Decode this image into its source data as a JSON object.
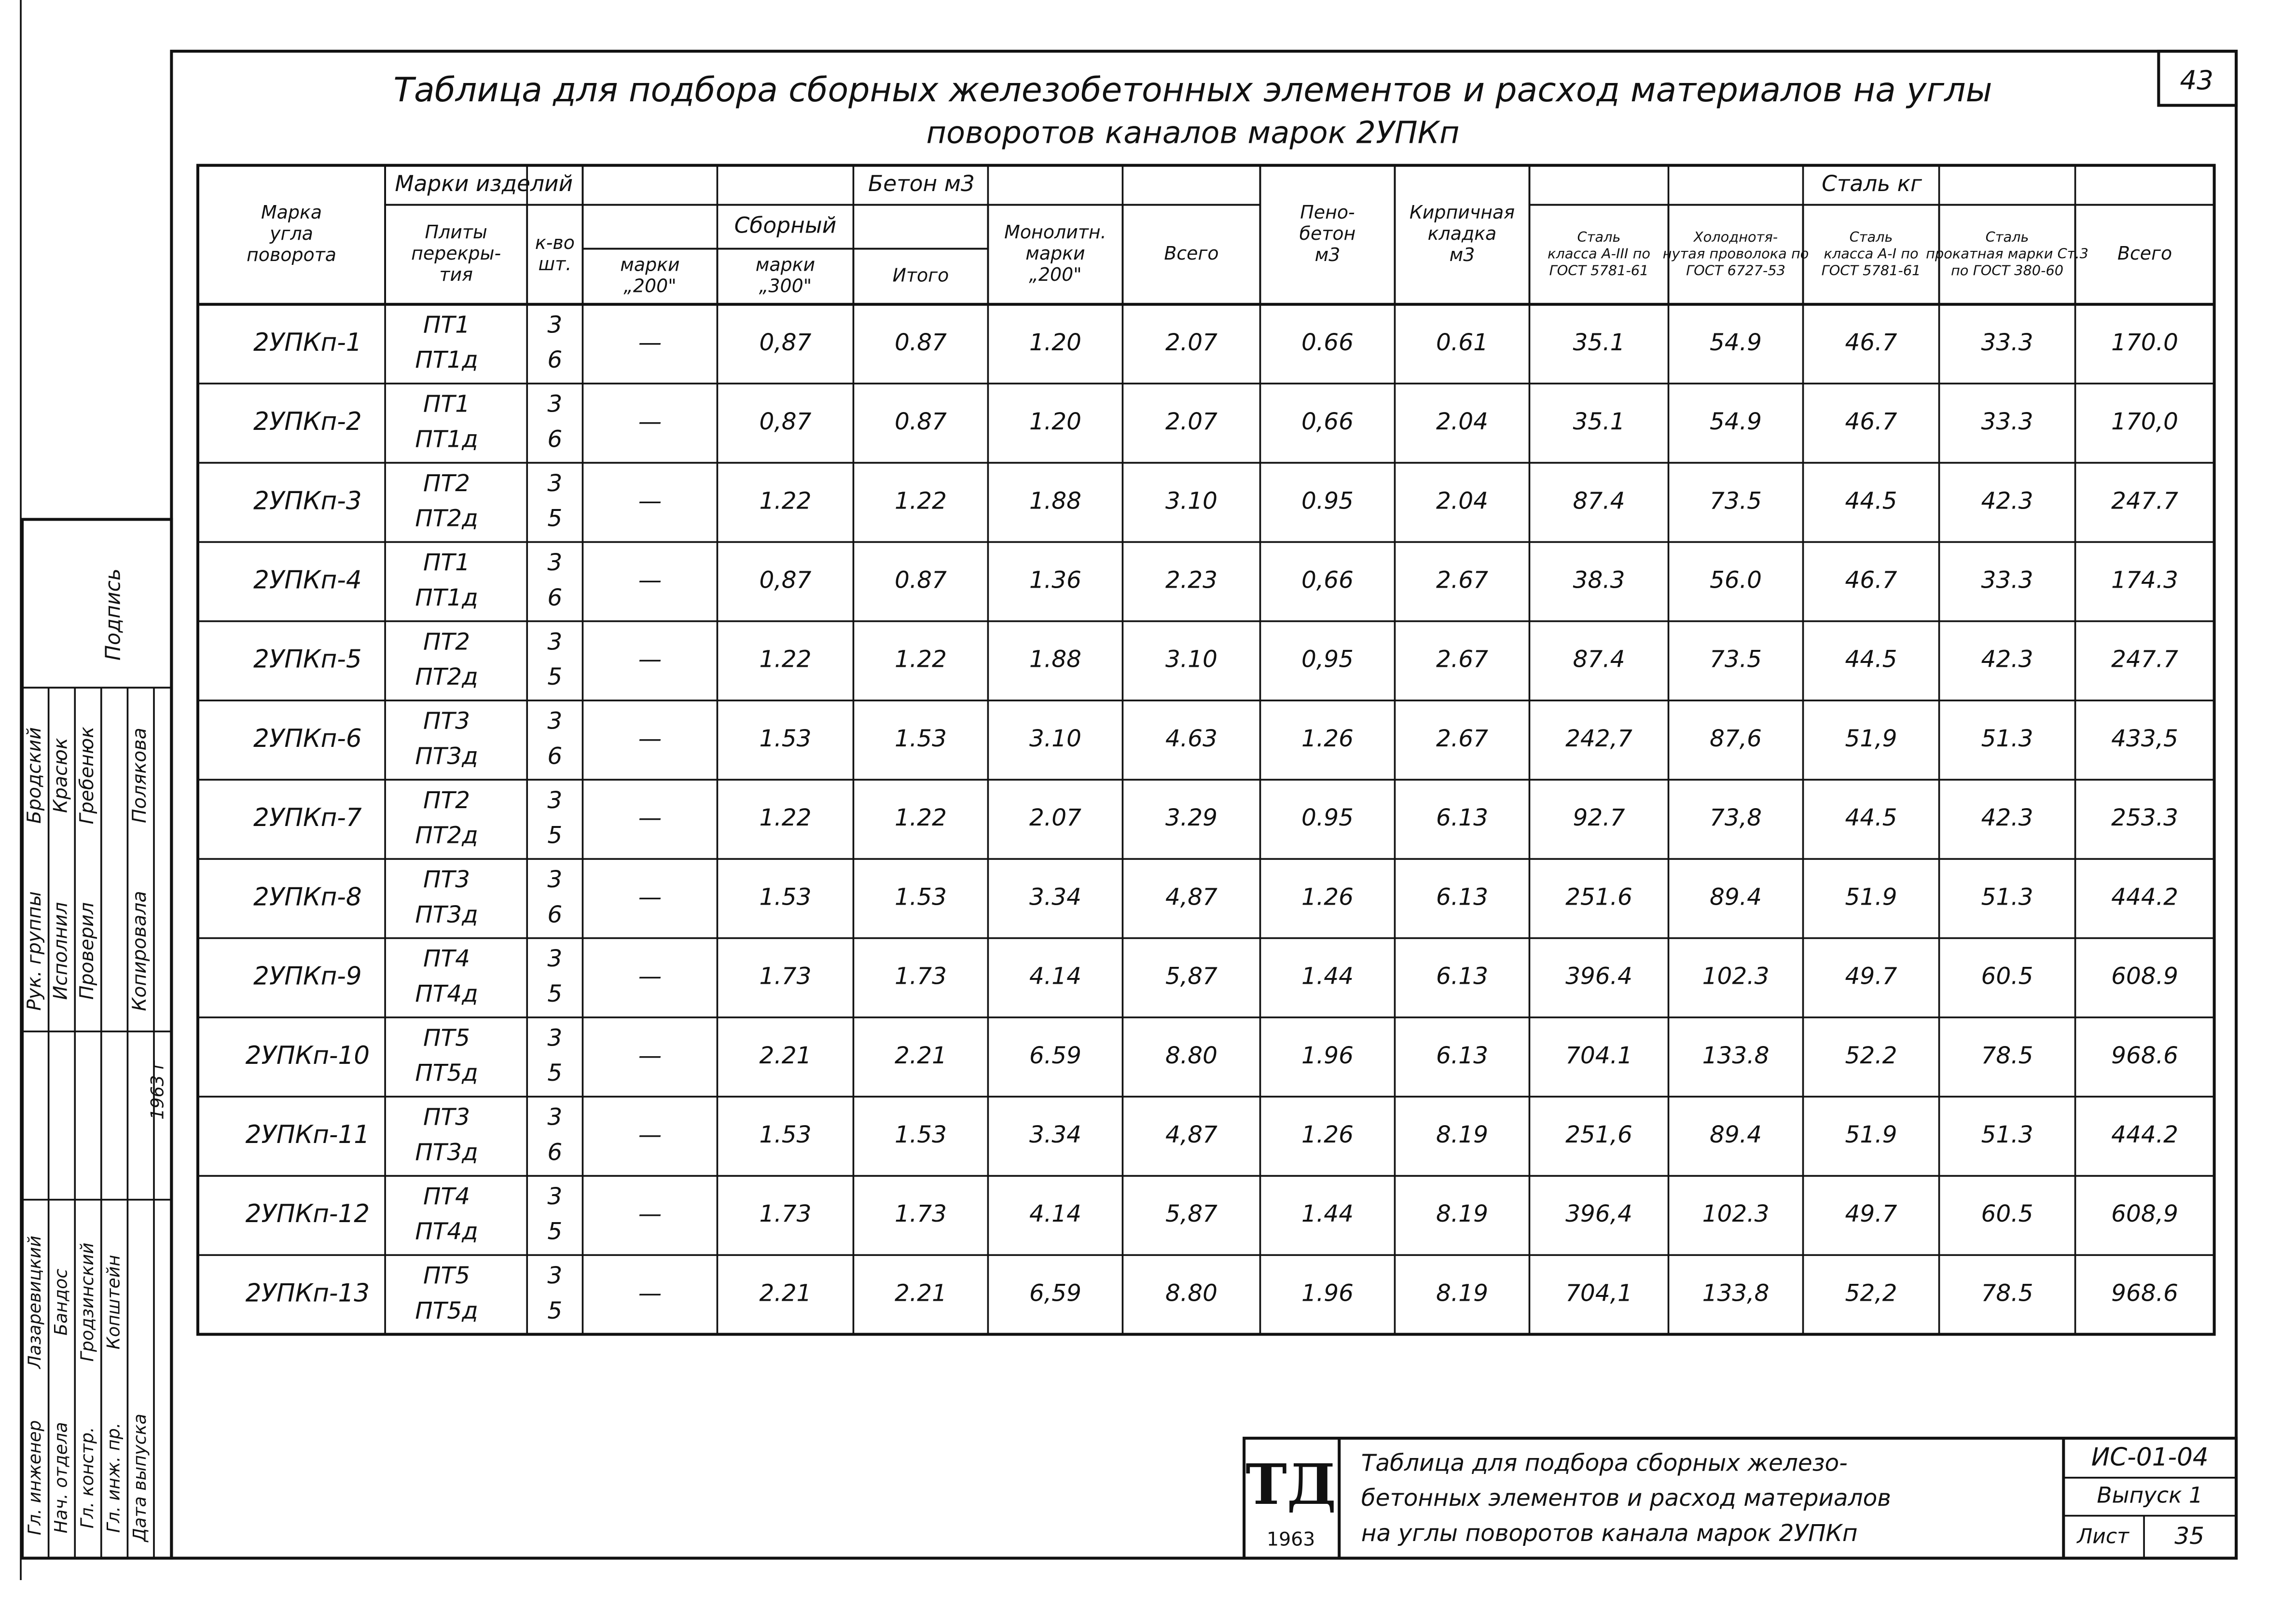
{
  "header": {
    "title_lines": [
      "Таблица для подбора сборных железобетонных элементов и расход материалов на углы",
      "поворотов каналов марок 2УПКп"
    ],
    "page_number": "43"
  },
  "table": {
    "header_cells": [
      [
        "Марка",
        "угла",
        "поворота"
      ],
      [
        "Марки изделий"
      ],
      [
        "Плиты",
        "перекры-",
        "тия"
      ],
      [
        "к-во",
        "шт."
      ],
      [
        "Бетон        м3"
      ],
      [
        "Сборный"
      ],
      [
        "марки",
        "„200\""
      ],
      [
        "марки",
        "„300\""
      ],
      [
        "Итого"
      ],
      [
        "Монолитн.",
        "марки",
        "„200\""
      ],
      [
        "Всего"
      ],
      [
        "Пено-",
        "бетон",
        "м3"
      ],
      [
        "Кирпичная",
        "кладка",
        "м3"
      ],
      [
        "Сталь          кг"
      ],
      [
        "Сталь",
        "класса А-III по",
        "ГОСТ 5781-61"
      ],
      [
        "Холоднотя-",
        "нутая проволока по",
        "ГОСТ 6727-53"
      ],
      [
        "Сталь",
        "класса А-I по",
        "ГОСТ 5781-61"
      ],
      [
        "Сталь",
        "прокатная марки Ст.3",
        "по ГОСТ 380-60"
      ],
      [
        "Всего"
      ]
    ],
    "rows": [
      [
        "2УПКп-1",
        "ПТ1",
        "ПТ1д",
        "3",
        "6",
        "—",
        "0,87",
        "0.87",
        "1.20",
        "2.07",
        "0.66",
        "0.61",
        "35.1",
        "54.9",
        "46.7",
        "33.3",
        "170.0"
      ],
      [
        "2УПКп-2",
        "ПТ1",
        "ПТ1д",
        "3",
        "6",
        "—",
        "0,87",
        "0.87",
        "1.20",
        "2.07",
        "0,66",
        "2.04",
        "35.1",
        "54.9",
        "46.7",
        "33.3",
        "170,0"
      ],
      [
        "2УПКп-3",
        "ПТ2",
        "ПТ2д",
        "3",
        "5",
        "—",
        "1.22",
        "1.22",
        "1.88",
        "3.10",
        "0.95",
        "2.04",
        "87.4",
        "73.5",
        "44.5",
        "42.3",
        "247.7"
      ],
      [
        "2УПКп-4",
        "ПТ1",
        "ПТ1д",
        "3",
        "6",
        "—",
        "0,87",
        "0.87",
        "1.36",
        "2.23",
        "0,66",
        "2.67",
        "38.3",
        "56.0",
        "46.7",
        "33.3",
        "174.3"
      ],
      [
        "2УПКп-5",
        "ПТ2",
        "ПТ2д",
        "3",
        "5",
        "—",
        "1.22",
        "1.22",
        "1.88",
        "3.10",
        "0,95",
        "2.67",
        "87.4",
        "73.5",
        "44.5",
        "42.3",
        "247.7"
      ],
      [
        "2УПКп-6",
        "ПТ3",
        "ПТ3д",
        "3",
        "6",
        "—",
        "1.53",
        "1.53",
        "3.10",
        "4.63",
        "1.26",
        "2.67",
        "242,7",
        "87,6",
        "51,9",
        "51.3",
        "433,5"
      ],
      [
        "2УПКп-7",
        "ПТ2",
        "ПТ2д",
        "3",
        "5",
        "—",
        "1.22",
        "1.22",
        "2.07",
        "3.29",
        "0.95",
        "6.13",
        "92.7",
        "73,8",
        "44.5",
        "42.3",
        "253.3"
      ],
      [
        "2УПКп-8",
        "ПТ3",
        "ПТ3д",
        "3",
        "6",
        "—",
        "1.53",
        "1.53",
        "3.34",
        "4,87",
        "1.26",
        "6.13",
        "251.6",
        "89.4",
        "51.9",
        "51.3",
        "444.2"
      ],
      [
        "2УПКп-9",
        "ПТ4",
        "ПТ4д",
        "3",
        "5",
        "—",
        "1.73",
        "1.73",
        "4.14",
        "5,87",
        "1.44",
        "6.13",
        "396.4",
        "102.3",
        "49.7",
        "60.5",
        "608.9"
      ],
      [
        "2УПКп-10",
        "ПТ5",
        "ПТ5д",
        "3",
        "5",
        "—",
        "2.21",
        "2.21",
        "6.59",
        "8.80",
        "1.96",
        "6.13",
        "704.1",
        "133.8",
        "52.2",
        "78.5",
        "968.6"
      ],
      [
        "2УПКп-11",
        "ПТ3",
        "ПТ3д",
        "3",
        "6",
        "—",
        "1.53",
        "1.53",
        "3.34",
        "4,87",
        "1.26",
        "8.19",
        "251,6",
        "89.4",
        "51.9",
        "51.3",
        "444.2"
      ],
      [
        "2УПКп-12",
        "ПТ4",
        "ПТ4д",
        "3",
        "5",
        "—",
        "1.73",
        "1.73",
        "4.14",
        "5,87",
        "1.44",
        "8.19",
        "396,4",
        "102.3",
        "49.7",
        "60.5",
        "608,9"
      ],
      [
        "2УПКп-13",
        "ПТ5",
        "ПТ5д",
        "3",
        "5",
        "—",
        "2.21",
        "2.21",
        "6,59",
        "8.80",
        "1.96",
        "8.19",
        "704,1",
        "133,8",
        "52,2",
        "78.5",
        "968.6"
      ]
    ]
  },
  "stamp": {
    "signature_header": "Подпись",
    "staff": [
      {
        "role": "Рук. группы",
        "name": "Бродский"
      },
      {
        "role": "Исполнил",
        "name": "Красюк"
      },
      {
        "role": "Проверил",
        "name": "Гребенюк"
      },
      {
        "role": "Копировала",
        "name": "Полякова"
      }
    ],
    "date": "1963 г",
    "approvals": [
      {
        "role": "Гл. инженер",
        "name": "Лазаревицкий"
      },
      {
        "role": "Нач. отдела",
        "name": "Бандос"
      },
      {
        "role": "Гл. констр.",
        "name": "Гродзинский"
      },
      {
        "role": "Гл. инж. пр.",
        "name": "Копштейн"
      },
      {
        "role": "Дата выпуска",
        "name": ""
      }
    ]
  },
  "title_block": {
    "logo": "ТД",
    "year": "1963",
    "description_lines": [
      "Таблица для подбора сборных железо-",
      "бетонных элементов и расход материалов",
      "на углы поворотов канала марок 2УПКп"
    ],
    "code": "ИС-01-04",
    "issue": "Выпуск 1",
    "sheet_label": "Лист",
    "sheet": "35"
  }
}
